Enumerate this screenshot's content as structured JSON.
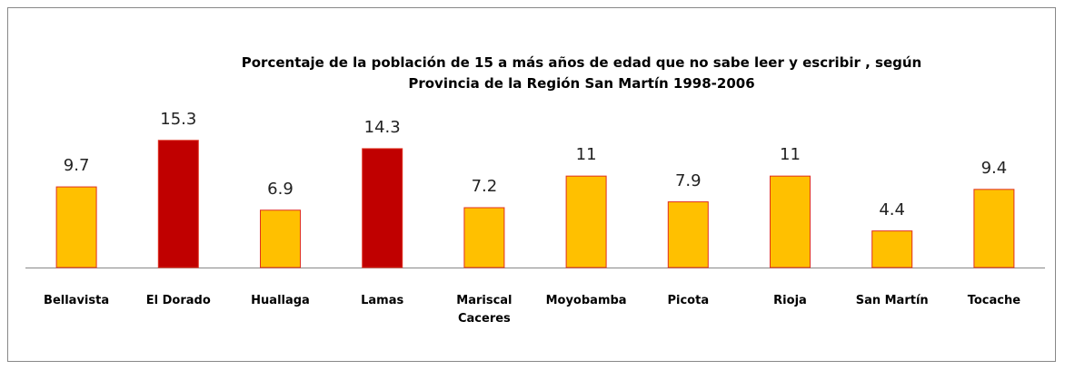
{
  "chart_data": {
    "type": "bar",
    "title": "Porcentaje de la población de 15 a más años de edad que no sabe leer y escribir , según\nProvincia de la Región San Martín 1998-2006",
    "categories": [
      "Bellavista",
      "El Dorado",
      "Huallaga",
      "Lamas",
      "Mariscal Caceres",
      "Moyobamba",
      "Picota",
      "Rioja",
      "San Martín",
      "Tocache"
    ],
    "values": [
      9.7,
      15.3,
      6.9,
      14.3,
      7.2,
      11,
      7.9,
      11,
      4.4,
      9.4
    ],
    "colors": [
      "#ffc000",
      "#c00000",
      "#ffc000",
      "#c00000",
      "#ffc000",
      "#ffc000",
      "#ffc000",
      "#ffc000",
      "#ffc000",
      "#ffc000"
    ],
    "edge_color": "#e03020",
    "ylim": [
      0,
      18
    ]
  }
}
